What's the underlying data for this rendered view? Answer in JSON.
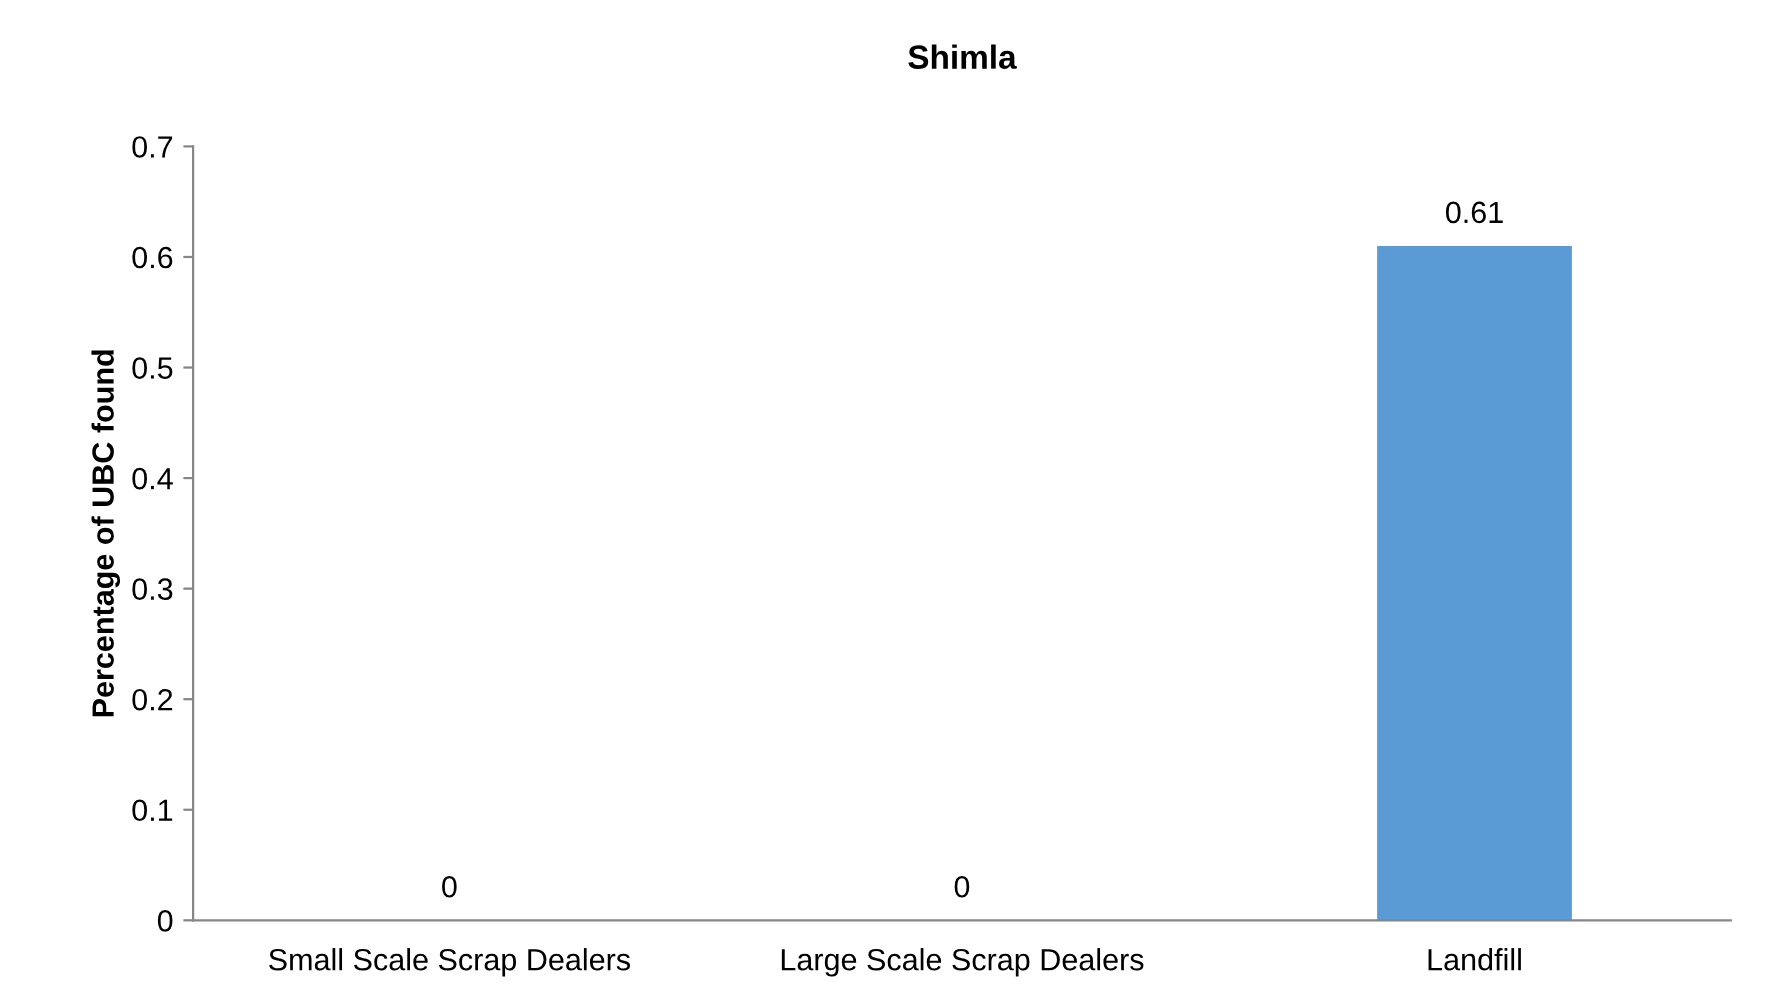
{
  "chart_data": {
    "type": "bar",
    "title": "Shimla",
    "ylabel": "Percentage of UBC found",
    "categories": [
      "Small Scale Scrap Dealers",
      "Large Scale Scrap Dealers",
      "Landfill"
    ],
    "values": [
      0,
      0,
      0.61
    ],
    "color": "#5b9bd5",
    "ylim": [
      0,
      0.7
    ],
    "yticks": [
      0,
      0.1,
      0.2,
      0.3,
      0.4,
      0.5,
      0.6,
      0.7
    ],
    "data_labels": true,
    "grid": false,
    "legend": false
  }
}
